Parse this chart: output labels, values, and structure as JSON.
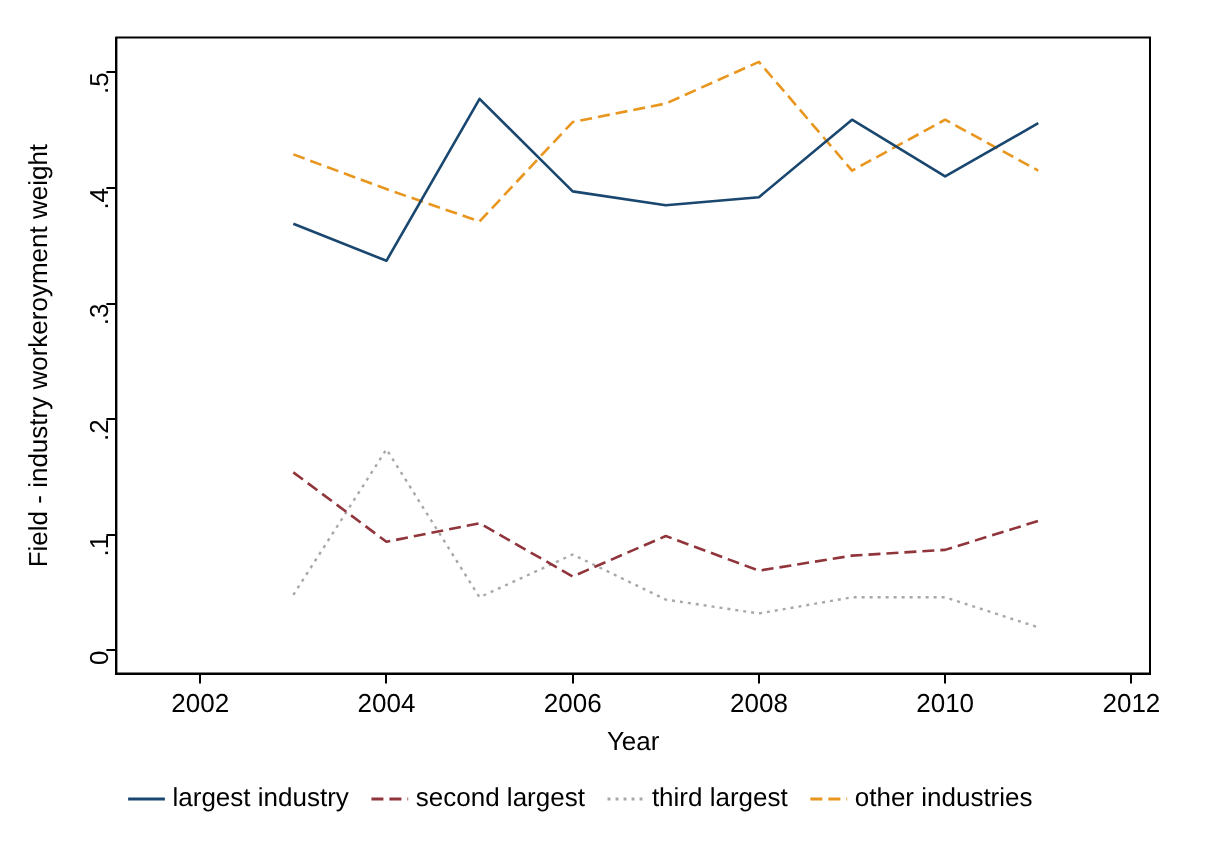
{
  "chart_data": {
    "type": "line",
    "xlabel": "Year",
    "ylabel": "Field - industry workeroyment weight",
    "x": [
      2003,
      2004,
      2005,
      2006,
      2007,
      2008,
      2009,
      2010,
      2011
    ],
    "series": [
      {
        "name": "largest industry",
        "color": "#1a476f",
        "line_style": "solid",
        "values": [
          0.369,
          0.337,
          0.477,
          0.397,
          0.385,
          0.392,
          0.459,
          0.41,
          0.456
        ]
      },
      {
        "name": "second largest",
        "color": "#90353b",
        "line_style": "dashed",
        "values": [
          0.154,
          0.094,
          0.11,
          0.064,
          0.099,
          0.069,
          0.082,
          0.087,
          0.112
        ]
      },
      {
        "name": "third largest",
        "color": "#a8a8a8",
        "line_style": "dotted",
        "values": [
          0.048,
          0.174,
          0.046,
          0.083,
          0.044,
          0.032,
          0.046,
          0.046,
          0.02
        ]
      },
      {
        "name": "other industries",
        "color": "#e8961e",
        "line_style": "dashed",
        "values": [
          0.429,
          0.399,
          0.371,
          0.457,
          0.473,
          0.509,
          0.415,
          0.459,
          0.415
        ]
      }
    ],
    "xlim": [
      2001.1,
      2012.2
    ],
    "xticks": [
      2002,
      2004,
      2006,
      2008,
      2010,
      2012
    ],
    "ylim": [
      -0.02,
      0.53
    ],
    "yticks": [
      0,
      {
        "value": 0.1,
        "label": ".1"
      },
      {
        "value": 0.2,
        "label": ".2"
      },
      {
        "value": 0.3,
        "label": ".3"
      },
      {
        "value": 0.4,
        "label": ".4"
      },
      {
        "value": 0.5,
        "label": ".5"
      }
    ],
    "grid": false,
    "legend": "bottom",
    "marker": "none"
  }
}
